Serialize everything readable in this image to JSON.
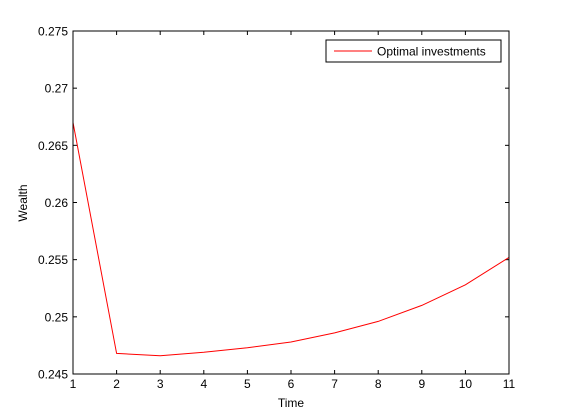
{
  "chart_data": {
    "type": "line",
    "title": "",
    "xlabel": "Time",
    "ylabel": "Wealth",
    "xlim": [
      1,
      11
    ],
    "ylim": [
      0.245,
      0.275
    ],
    "x_ticks": [
      1,
      2,
      3,
      4,
      5,
      6,
      7,
      8,
      9,
      10,
      11
    ],
    "x_tick_labels": [
      "1",
      "2",
      "3",
      "4",
      "5",
      "6",
      "7",
      "8",
      "9",
      "10",
      "11"
    ],
    "y_ticks": [
      0.245,
      0.25,
      0.255,
      0.26,
      0.265,
      0.27,
      0.275
    ],
    "y_tick_labels": [
      "0.245",
      "0.25",
      "0.255",
      "0.26",
      "0.265",
      "0.27",
      "0.275"
    ],
    "grid": false,
    "legend_position": "top-right",
    "series": [
      {
        "name": "Optimal investments",
        "color": "#ff0000",
        "x": [
          1,
          2,
          3,
          4,
          5,
          6,
          7,
          8,
          9,
          10,
          11
        ],
        "y": [
          0.267,
          0.2468,
          0.2466,
          0.2469,
          0.2473,
          0.2478,
          0.2486,
          0.2496,
          0.251,
          0.2528,
          0.2552
        ]
      }
    ]
  }
}
